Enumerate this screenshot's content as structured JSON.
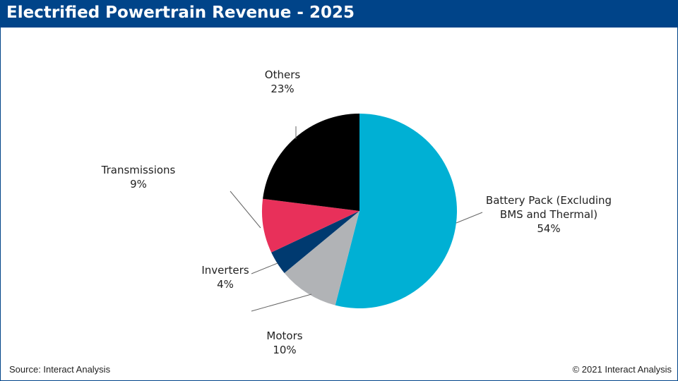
{
  "chart_data": {
    "type": "pie",
    "title": "Electrified Powertrain Revenue - 2025",
    "categories": [
      "Battery Pack (Excluding BMS and Thermal)",
      "Motors",
      "Inverters",
      "Transmissions",
      "Others"
    ],
    "values": [
      54,
      10,
      4,
      9,
      23
    ],
    "value_labels": [
      "54%",
      "10%",
      "4%",
      "9%",
      "23%"
    ],
    "colors": [
      "#00b0d4",
      "#b1b3b6",
      "#003a70",
      "#e8305a",
      "#000000"
    ],
    "source": "Source: Interact Analysis",
    "copyright": "© 2021 Interact Analysis"
  }
}
